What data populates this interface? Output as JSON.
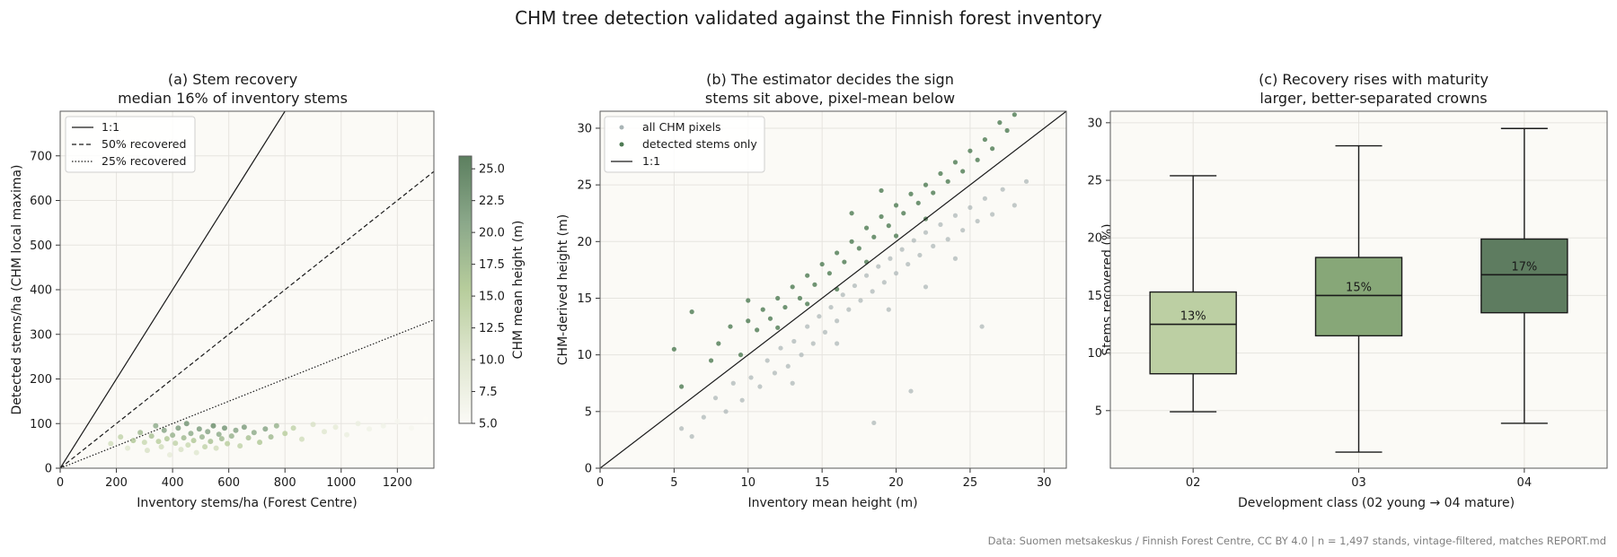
{
  "figure": {
    "suptitle": "CHM tree detection validated against the Finnish forest inventory",
    "footer": "Data: Suomen metsakeskus / Finnish Forest Centre, CC BY 4.0   |   n = 1,497 stands, vintage-filtered, matches REPORT.md"
  },
  "chart_data": [
    {
      "type": "scatter",
      "title": "(a) Stem recovery",
      "subtitle": "median 16% of inventory stems",
      "xlabel": "Inventory stems/ha (Forest Centre)",
      "ylabel": "Detected stems/ha (CHM local maxima)",
      "xlim": [
        0,
        1330
      ],
      "ylim": [
        0,
        800
      ],
      "xticks": [
        0,
        200,
        400,
        600,
        800,
        1000,
        1200
      ],
      "yticks": [
        0,
        100,
        200,
        300,
        400,
        500,
        600,
        700
      ],
      "grid": true,
      "legend_position": "top-left",
      "reference_lines": [
        {
          "name": "1:1",
          "slope": 1.0,
          "style": "solid"
        },
        {
          "name": "50% recovered",
          "slope": 0.5,
          "style": "dashed"
        },
        {
          "name": "25% recovered",
          "slope": 0.25,
          "style": "dotted"
        }
      ],
      "colorbar": {
        "label": "CHM mean height (m)",
        "range": [
          5.0,
          26.0
        ],
        "ticks": [
          "5.0",
          "7.5",
          "10.0",
          "12.5",
          "15.0",
          "17.5",
          "20.0",
          "22.5",
          "25.0"
        ],
        "colors": [
          "#fbfaf6",
          "#dfe6cf",
          "#b7cd9c",
          "#8ba88a",
          "#5c7f5f"
        ]
      },
      "points": [
        [
          180,
          55,
          12
        ],
        [
          215,
          70,
          14
        ],
        [
          240,
          45,
          10
        ],
        [
          260,
          62,
          16
        ],
        [
          285,
          80,
          18
        ],
        [
          300,
          58,
          13
        ],
        [
          310,
          40,
          11
        ],
        [
          325,
          72,
          17
        ],
        [
          340,
          95,
          20
        ],
        [
          350,
          60,
          15
        ],
        [
          360,
          48,
          12
        ],
        [
          370,
          85,
          21
        ],
        [
          380,
          66,
          16
        ],
        [
          390,
          30,
          9
        ],
        [
          400,
          74,
          19
        ],
        [
          410,
          56,
          14
        ],
        [
          420,
          90,
          22
        ],
        [
          430,
          42,
          11
        ],
        [
          440,
          68,
          18
        ],
        [
          450,
          100,
          23
        ],
        [
          455,
          52,
          13
        ],
        [
          465,
          78,
          20
        ],
        [
          475,
          62,
          16
        ],
        [
          485,
          35,
          10
        ],
        [
          495,
          88,
          22
        ],
        [
          505,
          70,
          19
        ],
        [
          515,
          48,
          14
        ],
        [
          525,
          82,
          21
        ],
        [
          535,
          60,
          17
        ],
        [
          545,
          95,
          24
        ],
        [
          555,
          45,
          12
        ],
        [
          565,
          76,
          20
        ],
        [
          575,
          66,
          18
        ],
        [
          585,
          90,
          23
        ],
        [
          595,
          55,
          15
        ],
        [
          610,
          72,
          19
        ],
        [
          625,
          85,
          21
        ],
        [
          640,
          50,
          14
        ],
        [
          655,
          92,
          22
        ],
        [
          670,
          68,
          17
        ],
        [
          690,
          80,
          20
        ],
        [
          710,
          58,
          16
        ],
        [
          730,
          88,
          21
        ],
        [
          750,
          70,
          18
        ],
        [
          770,
          95,
          19
        ],
        [
          800,
          78,
          15
        ],
        [
          830,
          90,
          14
        ],
        [
          860,
          65,
          12
        ],
        [
          900,
          98,
          11
        ],
        [
          940,
          82,
          10
        ],
        [
          980,
          92,
          9
        ],
        [
          1020,
          75,
          8
        ],
        [
          1060,
          100,
          8
        ],
        [
          1100,
          88,
          7
        ],
        [
          1150,
          95,
          7
        ],
        [
          1200,
          105,
          6
        ],
        [
          1250,
          90,
          6
        ],
        [
          1300,
          110,
          5
        ]
      ]
    },
    {
      "type": "scatter",
      "title": "(b) The estimator decides the sign",
      "subtitle": "stems sit above, pixel-mean below",
      "xlabel": "Inventory mean height (m)",
      "ylabel": "CHM-derived height (m)",
      "xlim": [
        0,
        31.5
      ],
      "ylim": [
        0,
        31.5
      ],
      "xticks": [
        0,
        5,
        10,
        15,
        20,
        25,
        30
      ],
      "yticks": [
        0,
        5,
        10,
        15,
        20,
        25,
        30
      ],
      "grid": true,
      "legend_position": "top-left",
      "series": [
        {
          "name": "all CHM pixels",
          "color": "#a9b4b5",
          "points": [
            [
              5.5,
              3.5
            ],
            [
              6.2,
              2.8
            ],
            [
              7.0,
              4.5
            ],
            [
              7.8,
              6.2
            ],
            [
              8.5,
              5.0
            ],
            [
              9.0,
              7.5
            ],
            [
              9.6,
              6.0
            ],
            [
              10.2,
              8.0
            ],
            [
              10.8,
              7.2
            ],
            [
              11.3,
              9.5
            ],
            [
              11.8,
              8.4
            ],
            [
              12.2,
              10.6
            ],
            [
              12.7,
              9.0
            ],
            [
              13.1,
              11.2
            ],
            [
              13.6,
              10.0
            ],
            [
              14.0,
              12.5
            ],
            [
              14.4,
              11.0
            ],
            [
              14.8,
              13.4
            ],
            [
              15.2,
              12.0
            ],
            [
              15.6,
              14.2
            ],
            [
              16.0,
              13.0
            ],
            [
              16.4,
              15.3
            ],
            [
              16.8,
              14.0
            ],
            [
              17.2,
              16.1
            ],
            [
              17.6,
              14.8
            ],
            [
              18.0,
              17.0
            ],
            [
              18.4,
              15.6
            ],
            [
              18.8,
              17.8
            ],
            [
              19.2,
              16.4
            ],
            [
              19.6,
              18.5
            ],
            [
              20.0,
              17.2
            ],
            [
              20.4,
              19.3
            ],
            [
              20.8,
              18.0
            ],
            [
              21.2,
              20.1
            ],
            [
              21.6,
              18.8
            ],
            [
              22.0,
              20.8
            ],
            [
              22.5,
              19.6
            ],
            [
              23.0,
              21.5
            ],
            [
              23.5,
              20.2
            ],
            [
              24.0,
              22.3
            ],
            [
              24.5,
              21.0
            ],
            [
              25.0,
              23.0
            ],
            [
              25.5,
              21.8
            ],
            [
              26.0,
              23.8
            ],
            [
              26.5,
              22.4
            ],
            [
              27.2,
              24.6
            ],
            [
              28.0,
              23.2
            ],
            [
              28.8,
              25.3
            ],
            [
              19.5,
              14.0
            ],
            [
              22.0,
              16.0
            ],
            [
              24.0,
              18.5
            ],
            [
              16.0,
              11.0
            ],
            [
              13.0,
              7.5
            ],
            [
              21.0,
              6.8
            ],
            [
              18.5,
              4.0
            ],
            [
              25.8,
              12.5
            ]
          ]
        },
        {
          "name": "detected stems only",
          "color": "#4e7a53",
          "points": [
            [
              5.0,
              10.5
            ],
            [
              5.5,
              7.2
            ],
            [
              6.2,
              13.8
            ],
            [
              7.5,
              9.5
            ],
            [
              8.0,
              11.0
            ],
            [
              8.8,
              12.5
            ],
            [
              9.5,
              10.0
            ],
            [
              10.0,
              13.0
            ],
            [
              10.6,
              12.2
            ],
            [
              11.0,
              14.0
            ],
            [
              11.5,
              13.2
            ],
            [
              12.0,
              15.0
            ],
            [
              12.5,
              14.2
            ],
            [
              13.0,
              16.0
            ],
            [
              13.5,
              15.0
            ],
            [
              14.0,
              17.0
            ],
            [
              14.5,
              16.2
            ],
            [
              15.0,
              18.0
            ],
            [
              15.5,
              17.2
            ],
            [
              16.0,
              19.0
            ],
            [
              16.5,
              18.2
            ],
            [
              17.0,
              20.0
            ],
            [
              17.5,
              19.4
            ],
            [
              18.0,
              21.2
            ],
            [
              18.5,
              20.4
            ],
            [
              19.0,
              22.2
            ],
            [
              19.5,
              21.4
            ],
            [
              20.0,
              23.2
            ],
            [
              20.5,
              22.5
            ],
            [
              21.0,
              24.2
            ],
            [
              21.5,
              23.4
            ],
            [
              22.0,
              25.0
            ],
            [
              22.5,
              24.3
            ],
            [
              23.0,
              26.0
            ],
            [
              23.5,
              25.3
            ],
            [
              24.0,
              27.0
            ],
            [
              24.5,
              26.2
            ],
            [
              25.0,
              28.0
            ],
            [
              25.5,
              27.2
            ],
            [
              26.0,
              29.0
            ],
            [
              26.5,
              28.2
            ],
            [
              27.0,
              30.5
            ],
            [
              27.5,
              29.8
            ],
            [
              28.0,
              31.2
            ],
            [
              14.0,
              14.5
            ],
            [
              16.0,
              15.8
            ],
            [
              18.0,
              18.2
            ],
            [
              20.0,
              20.5
            ],
            [
              22.0,
              22.0
            ],
            [
              12.0,
              12.4
            ],
            [
              10.0,
              14.8
            ],
            [
              17.0,
              22.5
            ],
            [
              19.0,
              24.5
            ]
          ]
        }
      ],
      "reference_lines": [
        {
          "name": "1:1",
          "slope": 1.0,
          "style": "solid"
        }
      ]
    },
    {
      "type": "box",
      "title": "(c) Recovery rises with maturity",
      "subtitle": "larger, better-separated crowns",
      "xlabel": "Development class  (02 young → 04 mature)",
      "ylabel": "Stems recovered (%)",
      "ylim": [
        0,
        31
      ],
      "yticks": [
        5,
        10,
        15,
        20,
        25,
        30
      ],
      "grid": true,
      "categories": [
        "02",
        "03",
        "04"
      ],
      "boxes": [
        {
          "category": "02",
          "whisker_low": 4.9,
          "q1": 8.2,
          "median": 12.5,
          "q3": 15.3,
          "whisker_high": 25.4,
          "label": "13%",
          "color": "#bccfa3"
        },
        {
          "category": "03",
          "whisker_low": 1.4,
          "q1": 11.5,
          "median": 15.0,
          "q3": 18.3,
          "whisker_high": 28.0,
          "label": "15%",
          "color": "#87a778"
        },
        {
          "category": "04",
          "whisker_low": 3.9,
          "q1": 13.5,
          "median": 16.8,
          "q3": 19.9,
          "whisker_high": 29.5,
          "label": "17%",
          "color": "#5e7c60"
        }
      ]
    }
  ]
}
